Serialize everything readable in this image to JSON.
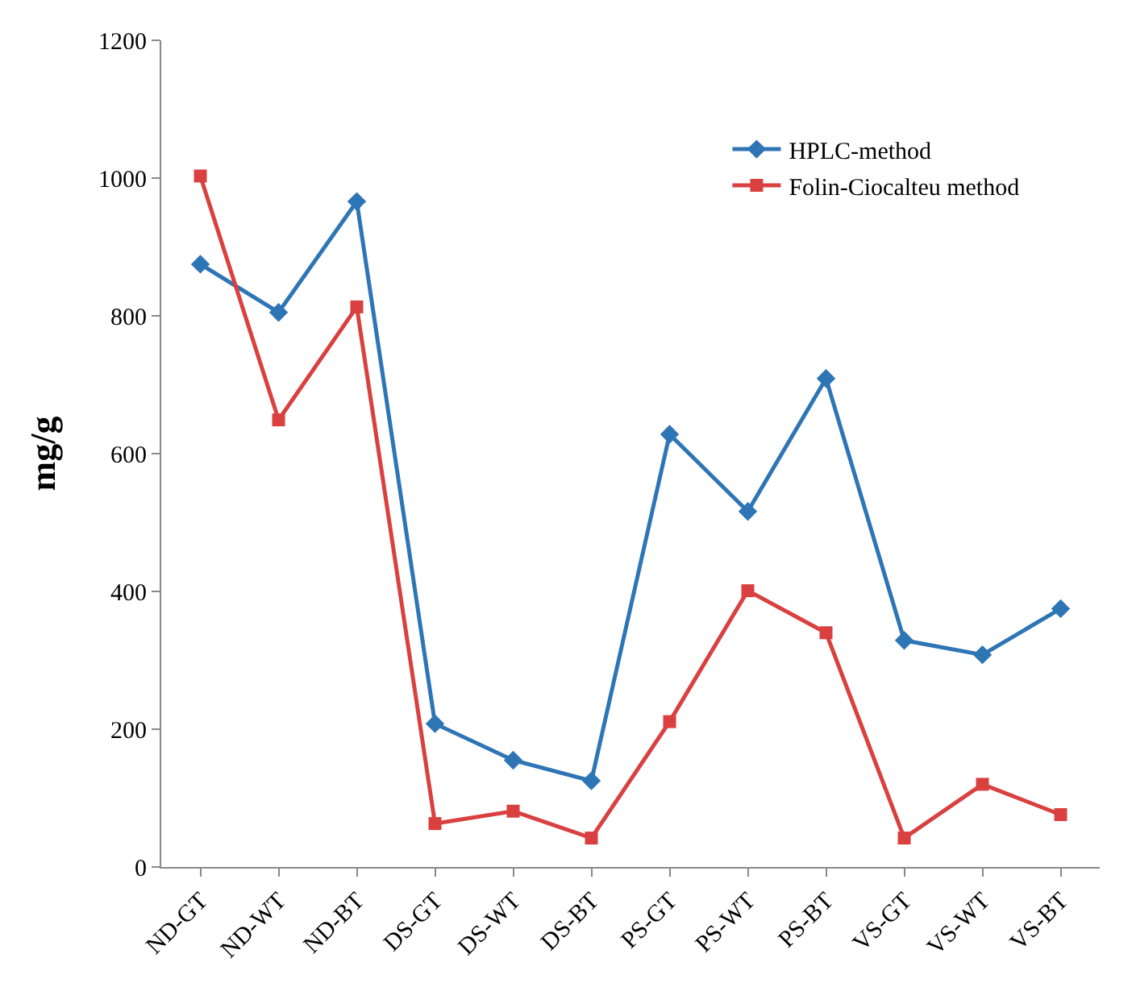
{
  "chart_data": {
    "type": "line",
    "ylabel": "mg/g",
    "categories": [
      "ND-GT",
      "ND-WT",
      "ND-BT",
      "DS-GT",
      "DS-WT",
      "DS-BT",
      "PS-GT",
      "PS-WT",
      "PS-BT",
      "VS-GT",
      "VS-WT",
      "VS-BT"
    ],
    "series": [
      {
        "name": "HPLC-method",
        "color": "#2e75b6",
        "marker": "diamond",
        "values": [
          875,
          805,
          966,
          208,
          155,
          125,
          628,
          516,
          709,
          329,
          308,
          375
        ]
      },
      {
        "name": "Folin-Ciocalteu method",
        "color": "#d9403f",
        "marker": "square",
        "values": [
          1003,
          649,
          813,
          63,
          81,
          42,
          211,
          401,
          340,
          42,
          120,
          76
        ]
      }
    ],
    "ylim": [
      0,
      1200
    ],
    "yticks": [
      0,
      200,
      400,
      600,
      800,
      1000,
      1200
    ],
    "grid": false,
    "legend": "top right",
    "line_style": "solid"
  }
}
